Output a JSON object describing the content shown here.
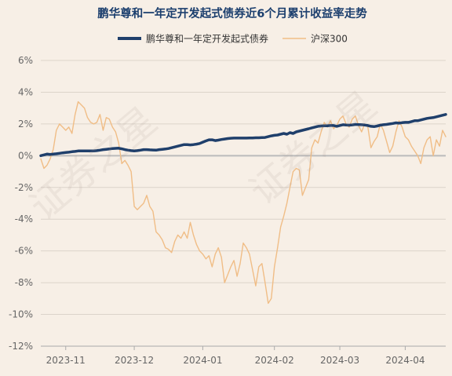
{
  "chart_data": {
    "type": "line",
    "title": "鹏华尊和一年定开发起式债券近6个月累计收益率走势",
    "colors": {
      "background": "#f7efe6",
      "title": "#1c3f6e",
      "fund": "#1f3f6b",
      "index": "#f0bd86",
      "axis": "#aaaaaa",
      "grid": "#dcd4ca",
      "tick_text": "#666666"
    },
    "y_axis": {
      "ticks": [
        6,
        4,
        2,
        0,
        -2,
        -4,
        -6,
        -8,
        -10,
        -12
      ],
      "tick_labels": [
        "6%",
        "4%",
        "2%",
        "0%",
        "-2%",
        "-4%",
        "-6%",
        "-8%",
        "-10%",
        "-12%"
      ],
      "range": [
        -12,
        6
      ],
      "unit": "%"
    },
    "x_axis": {
      "tick_labels": [
        "2023-11",
        "2023-12",
        "2024-01",
        "2024-02",
        "2024-03",
        "2024-04"
      ],
      "tick_positions_index": [
        8,
        30,
        52,
        75,
        96,
        117
      ],
      "n_points": 131
    },
    "legend": {
      "placement": "top-center"
    },
    "watermark": "证券之星",
    "series": [
      {
        "name": "鹏华尊和一年定开发起式债券",
        "values": [
          0.0,
          0.05,
          0.1,
          0.08,
          0.1,
          0.12,
          0.15,
          0.18,
          0.2,
          0.22,
          0.25,
          0.27,
          0.3,
          0.3,
          0.3,
          0.3,
          0.3,
          0.3,
          0.32,
          0.35,
          0.38,
          0.4,
          0.42,
          0.45,
          0.46,
          0.47,
          0.43,
          0.38,
          0.35,
          0.32,
          0.3,
          0.32,
          0.35,
          0.38,
          0.38,
          0.37,
          0.36,
          0.35,
          0.38,
          0.4,
          0.42,
          0.45,
          0.5,
          0.55,
          0.6,
          0.65,
          0.7,
          0.7,
          0.68,
          0.7,
          0.73,
          0.77,
          0.85,
          0.93,
          1.0,
          1.0,
          0.95,
          0.98,
          1.02,
          1.05,
          1.08,
          1.1,
          1.11,
          1.11,
          1.11,
          1.11,
          1.11,
          1.12,
          1.12,
          1.13,
          1.13,
          1.14,
          1.15,
          1.2,
          1.25,
          1.28,
          1.3,
          1.35,
          1.4,
          1.35,
          1.45,
          1.4,
          1.5,
          1.55,
          1.6,
          1.65,
          1.7,
          1.75,
          1.8,
          1.85,
          1.87,
          1.88,
          1.88,
          1.9,
          1.9,
          1.85,
          1.9,
          1.95,
          1.93,
          1.92,
          1.94,
          1.97,
          1.96,
          1.95,
          1.93,
          1.9,
          1.85,
          1.83,
          1.87,
          1.92,
          1.95,
          1.97,
          2.0,
          2.03,
          2.07,
          2.05,
          2.08,
          2.1,
          2.1,
          2.15,
          2.2,
          2.2,
          2.25,
          2.3,
          2.35,
          2.38,
          2.4,
          2.45,
          2.5,
          2.55,
          2.6
        ]
      },
      {
        "name": "沪深300",
        "values": [
          -0.2,
          -0.8,
          -0.6,
          -0.2,
          0.4,
          1.6,
          2.0,
          1.8,
          1.6,
          1.8,
          1.4,
          2.6,
          3.4,
          3.2,
          3.0,
          2.4,
          2.1,
          2.0,
          2.1,
          2.6,
          1.6,
          2.4,
          2.3,
          1.8,
          1.5,
          0.8,
          -0.5,
          -0.3,
          -0.6,
          -1.0,
          -3.2,
          -3.4,
          -3.2,
          -3.0,
          -2.5,
          -3.2,
          -3.5,
          -4.8,
          -5.0,
          -5.3,
          -5.8,
          -5.9,
          -6.1,
          -5.4,
          -5.0,
          -5.2,
          -4.8,
          -5.2,
          -4.2,
          -5.0,
          -5.6,
          -6.0,
          -6.2,
          -6.5,
          -6.3,
          -7.0,
          -6.2,
          -5.8,
          -6.4,
          -8.0,
          -7.5,
          -7.0,
          -6.6,
          -7.6,
          -6.8,
          -5.5,
          -5.8,
          -6.2,
          -7.2,
          -8.2,
          -7.0,
          -6.8,
          -8.0,
          -9.3,
          -9.0,
          -7.0,
          -5.8,
          -4.5,
          -3.8,
          -3.0,
          -2.0,
          -1.0,
          -0.8,
          -0.9,
          -2.5,
          -2.0,
          -1.5,
          0.5,
          1.0,
          0.8,
          1.5,
          2.1,
          1.8,
          2.2,
          1.7,
          1.9,
          2.3,
          2.5,
          2.0,
          1.8,
          2.3,
          2.5,
          1.9,
          1.5,
          2.0,
          1.8,
          0.5,
          0.9,
          1.2,
          2.0,
          1.6,
          0.9,
          0.2,
          0.6,
          1.5,
          2.2,
          1.8,
          1.2,
          1.0,
          0.6,
          0.3,
          0.0,
          -0.5,
          0.5,
          1.0,
          1.2,
          0.0,
          1.0,
          0.6,
          1.6,
          1.2
        ]
      }
    ]
  }
}
